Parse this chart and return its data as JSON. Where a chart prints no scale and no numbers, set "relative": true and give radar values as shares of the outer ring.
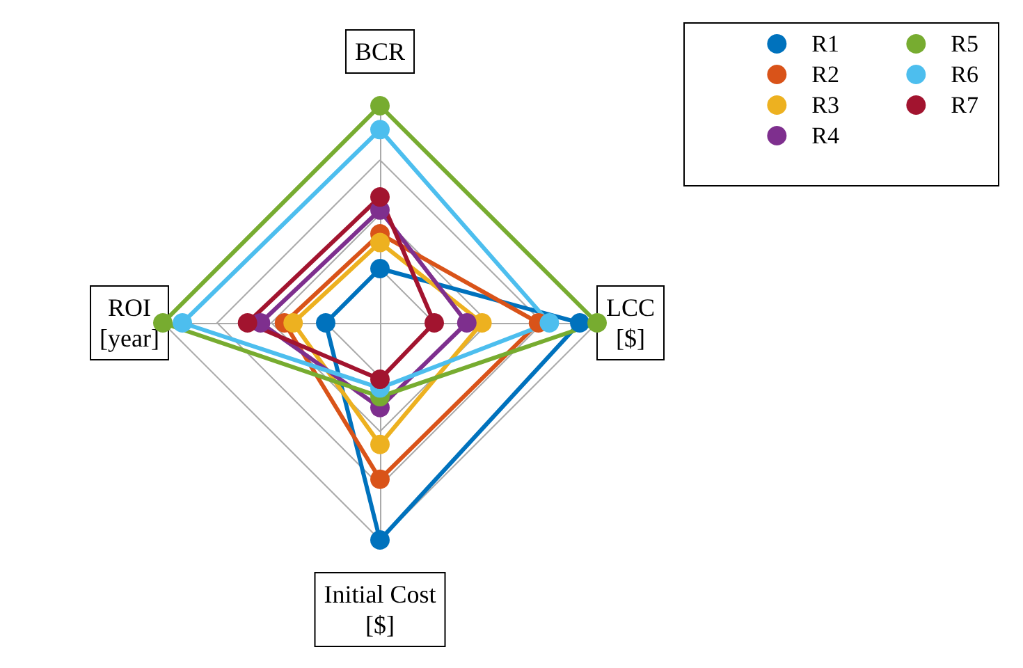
{
  "chart_data": {
    "type": "radar",
    "relative": true,
    "categories": [
      "BCR",
      "LCC\n[$]",
      "Initial Cost\n[$]",
      "ROI\n[year]"
    ],
    "series": [
      {
        "name": "R1",
        "color": "#0072bd",
        "values": [
          0.25,
          0.92,
          1.0,
          0.25
        ]
      },
      {
        "name": "R2",
        "color": "#d95319",
        "values": [
          0.41,
          0.73,
          0.72,
          0.44
        ]
      },
      {
        "name": "R3",
        "color": "#edb120",
        "values": [
          0.37,
          0.47,
          0.56,
          0.4
        ]
      },
      {
        "name": "R4",
        "color": "#7e2f8e",
        "values": [
          0.52,
          0.4,
          0.39,
          0.55
        ]
      },
      {
        "name": "R5",
        "color": "#77ac30",
        "values": [
          1.0,
          1.0,
          0.34,
          1.0
        ]
      },
      {
        "name": "R6",
        "color": "#4dbeee",
        "values": [
          0.89,
          0.78,
          0.3,
          0.91
        ]
      },
      {
        "name": "R7",
        "color": "#a2142f",
        "values": [
          0.58,
          0.25,
          0.26,
          0.61
        ]
      }
    ],
    "grid": true,
    "legend": "top right",
    "marker": "circle",
    "line_style": "solid"
  }
}
